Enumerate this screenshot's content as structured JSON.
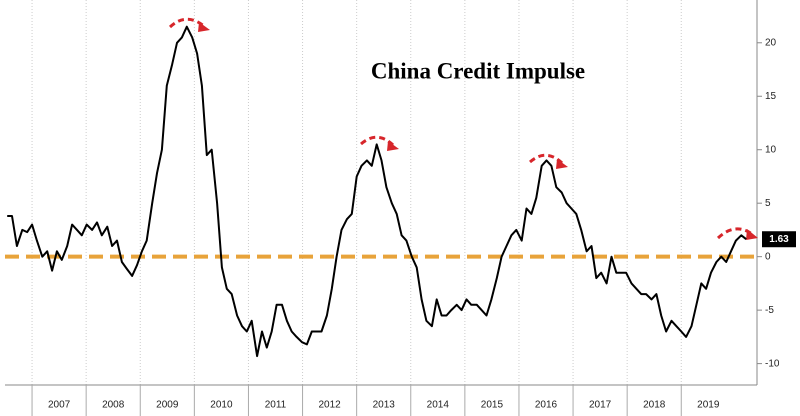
{
  "chart_data": {
    "type": "line",
    "title": "China Credit Impulse",
    "xlim": [
      2006.5,
      2020.4
    ],
    "ylim": [
      -12,
      24
    ],
    "xticks": [
      2007,
      2008,
      2009,
      2010,
      2011,
      2012,
      2013,
      2014,
      2015,
      2016,
      2017,
      2018,
      2019
    ],
    "yticks": [
      -10,
      -5,
      0,
      5,
      10,
      15,
      20
    ],
    "grid": true,
    "reference_line": {
      "value": 0,
      "color": "#e8a33a"
    },
    "series": [
      {
        "color": "#000000",
        "x": [
          2006.54,
          2006.63,
          2006.72,
          2006.82,
          2006.91,
          2007.0,
          2007.09,
          2007.19,
          2007.28,
          2007.37,
          2007.46,
          2007.55,
          2007.65,
          2007.74,
          2007.83,
          2007.92,
          2008.01,
          2008.11,
          2008.2,
          2008.29,
          2008.39,
          2008.48,
          2008.57,
          2008.66,
          2008.76,
          2008.85,
          2008.94,
          2009.03,
          2009.12,
          2009.22,
          2009.31,
          2009.4,
          2009.49,
          2009.59,
          2009.68,
          2009.77,
          2009.86,
          2009.96,
          2010.05,
          2010.14,
          2010.23,
          2010.32,
          2010.42,
          2010.51,
          2010.6,
          2010.69,
          2010.79,
          2010.88,
          2010.97,
          2011.06,
          2011.16,
          2011.25,
          2011.34,
          2011.43,
          2011.52,
          2011.62,
          2011.71,
          2011.8,
          2011.89,
          2011.99,
          2012.08,
          2012.17,
          2012.26,
          2012.35,
          2012.45,
          2012.54,
          2012.63,
          2012.72,
          2012.82,
          2012.91,
          2013.0,
          2013.09,
          2013.19,
          2013.28,
          2013.37,
          2013.46,
          2013.55,
          2013.65,
          2013.74,
          2013.83,
          2013.92,
          2014.02,
          2014.11,
          2014.2,
          2014.29,
          2014.39,
          2014.48,
          2014.57,
          2014.66,
          2014.75,
          2014.85,
          2014.94,
          2015.03,
          2015.12,
          2015.22,
          2015.31,
          2015.4,
          2015.49,
          2015.59,
          2015.68,
          2015.77,
          2015.86,
          2015.95,
          2016.05,
          2016.14,
          2016.23,
          2016.32,
          2016.42,
          2016.51,
          2016.6,
          2016.69,
          2016.79,
          2016.88,
          2016.97,
          2017.06,
          2017.15,
          2017.25,
          2017.34,
          2017.43,
          2017.52,
          2017.62,
          2017.71,
          2017.8,
          2017.89,
          2017.98,
          2018.08,
          2018.17,
          2018.26,
          2018.35,
          2018.45,
          2018.54,
          2018.63,
          2018.72,
          2018.82,
          2018.91,
          2019.0,
          2019.09,
          2019.19,
          2019.28,
          2019.37,
          2019.46,
          2019.55,
          2019.65,
          2019.74,
          2019.83,
          2019.92,
          2020.01,
          2020.11,
          2020.2
        ],
        "values": [
          3.8,
          3.8,
          1,
          2.5,
          2.3,
          3,
          1.5,
          0,
          0.5,
          -1.3,
          0.5,
          -0.3,
          1,
          3,
          2.5,
          2,
          3,
          2.5,
          3.2,
          2,
          2.8,
          1,
          1.5,
          -0.5,
          -1.2,
          -1.8,
          -0.8,
          0.5,
          1.5,
          5,
          7.8,
          10,
          16,
          18,
          20,
          20.5,
          21.5,
          20.5,
          19,
          16,
          9.5,
          10,
          5,
          -1,
          -3,
          -3.5,
          -5.5,
          -6.5,
          -7,
          -6,
          -9.3,
          -7,
          -8.5,
          -7,
          -4.5,
          -4.5,
          -6,
          -7,
          -7.5,
          -8,
          -8.2,
          -7,
          -7,
          -7,
          -5.5,
          -3,
          0,
          2.5,
          3.5,
          4,
          7.5,
          8.5,
          9,
          8.5,
          10.5,
          9,
          6.5,
          5,
          4,
          2,
          1.5,
          0,
          -1,
          -4,
          -6,
          -6.5,
          -4,
          -5.5,
          -5.5,
          -5,
          -4.5,
          -5,
          -4,
          -4.5,
          -4.5,
          -5,
          -5.5,
          -4,
          -2,
          0,
          1,
          2,
          2.5,
          1.5,
          4.5,
          4,
          5.5,
          8.5,
          9,
          8.5,
          6.5,
          6,
          5,
          4.5,
          4,
          2.5,
          0.5,
          1,
          -2,
          -1.5,
          -2.5,
          0,
          -1.5,
          -1.5,
          -1.5,
          -2.5,
          -3,
          -3.5,
          -3.5,
          -4,
          -3.5,
          -5.5,
          -7,
          -6,
          -6.5,
          -7,
          -7.5,
          -6.5,
          -4.5,
          -2.5,
          -3,
          -1.5,
          -0.5,
          0,
          -0.5,
          0.5,
          1.5,
          2,
          1.63
        ]
      }
    ]
  }
}
